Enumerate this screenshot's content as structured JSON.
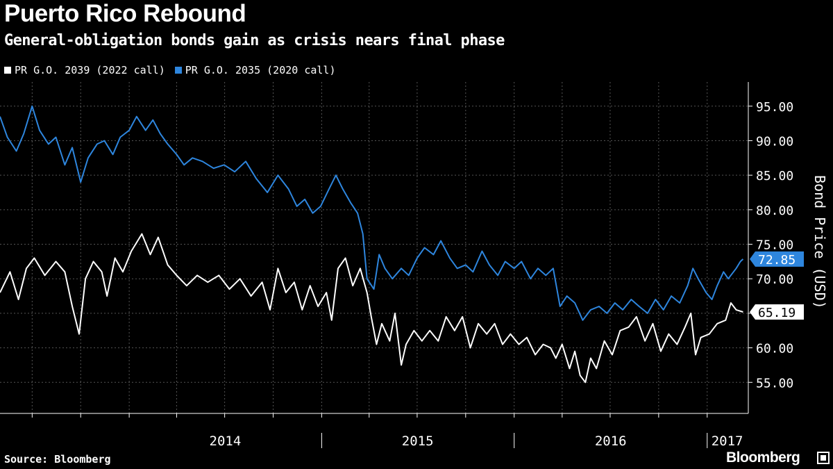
{
  "title": "Puerto Rico Rebound",
  "subtitle": "General-obligation bonds gain as crisis nears final phase",
  "source": "Source: Bloomberg",
  "brand": "Bloomberg",
  "colors": {
    "background": "#000000",
    "series_white": "#ffffff",
    "series_blue": "#2e86de",
    "grid": "#555555"
  },
  "chart_data": {
    "type": "line",
    "ylabel": "Bond Price (USD)",
    "ylim": [
      50.5,
      98.5
    ],
    "yticks": [
      "95.00",
      "90.00",
      "85.00",
      "80.00",
      "75.00",
      "70.00",
      "65.00",
      "60.00",
      "55.00"
    ],
    "ytick_values": [
      95,
      90,
      85,
      80,
      75,
      70,
      65,
      60,
      55
    ],
    "xrange": [
      "2013-05-01",
      "2017-03-20"
    ],
    "xticks": [
      {
        "label": "2014",
        "date": "2014-01-01"
      },
      {
        "label": "2015",
        "date": "2015-01-01"
      },
      {
        "label": "2016",
        "date": "2016-01-01"
      },
      {
        "label": "2017",
        "date": "2017-01-01"
      }
    ],
    "legend_position": "top-left",
    "series": [
      {
        "name": "PR G.O. 2039 (2022 call)",
        "color": "#ffffff",
        "last_label": "65.19",
        "points": [
          [
            "2013-05-01",
            68.0
          ],
          [
            "2013-05-20",
            71.0
          ],
          [
            "2013-06-05",
            67.0
          ],
          [
            "2013-06-20",
            71.5
          ],
          [
            "2013-07-05",
            73.0
          ],
          [
            "2013-07-25",
            70.5
          ],
          [
            "2013-08-15",
            72.5
          ],
          [
            "2013-09-01",
            71.0
          ],
          [
            "2013-09-15",
            66.0
          ],
          [
            "2013-09-28",
            62.0
          ],
          [
            "2013-10-10",
            70.0
          ],
          [
            "2013-10-25",
            72.5
          ],
          [
            "2013-11-10",
            71.0
          ],
          [
            "2013-11-20",
            67.5
          ],
          [
            "2013-12-05",
            73.0
          ],
          [
            "2013-12-20",
            71.0
          ],
          [
            "2014-01-05",
            74.0
          ],
          [
            "2014-01-25",
            76.5
          ],
          [
            "2014-02-10",
            73.5
          ],
          [
            "2014-02-25",
            76.0
          ],
          [
            "2014-03-15",
            72.0
          ],
          [
            "2014-04-01",
            70.5
          ],
          [
            "2014-04-20",
            69.0
          ],
          [
            "2014-05-10",
            70.5
          ],
          [
            "2014-05-30",
            69.5
          ],
          [
            "2014-06-20",
            70.5
          ],
          [
            "2014-07-10",
            68.5
          ],
          [
            "2014-07-30",
            70.0
          ],
          [
            "2014-08-20",
            67.5
          ],
          [
            "2014-09-10",
            69.5
          ],
          [
            "2014-09-25",
            65.5
          ],
          [
            "2014-10-10",
            71.5
          ],
          [
            "2014-10-25",
            68.0
          ],
          [
            "2014-11-10",
            69.5
          ],
          [
            "2014-11-25",
            65.5
          ],
          [
            "2014-12-10",
            69.0
          ],
          [
            "2014-12-25",
            66.0
          ],
          [
            "2015-01-10",
            68.0
          ],
          [
            "2015-01-20",
            64.0
          ],
          [
            "2015-02-01",
            71.5
          ],
          [
            "2015-02-15",
            73.0
          ],
          [
            "2015-03-01",
            69.0
          ],
          [
            "2015-03-15",
            71.5
          ],
          [
            "2015-03-28",
            68.0
          ],
          [
            "2015-04-05",
            64.5
          ],
          [
            "2015-04-15",
            60.5
          ],
          [
            "2015-04-25",
            63.5
          ],
          [
            "2015-05-10",
            61.0
          ],
          [
            "2015-05-20",
            65.0
          ],
          [
            "2015-06-01",
            57.5
          ],
          [
            "2015-06-10",
            60.5
          ],
          [
            "2015-06-25",
            62.5
          ],
          [
            "2015-07-10",
            61.0
          ],
          [
            "2015-07-25",
            62.5
          ],
          [
            "2015-08-10",
            61.0
          ],
          [
            "2015-08-25",
            64.5
          ],
          [
            "2015-09-10",
            62.5
          ],
          [
            "2015-09-25",
            64.5
          ],
          [
            "2015-10-10",
            60.0
          ],
          [
            "2015-10-25",
            63.5
          ],
          [
            "2015-11-10",
            62.0
          ],
          [
            "2015-11-25",
            63.5
          ],
          [
            "2015-12-10",
            60.5
          ],
          [
            "2015-12-25",
            62.0
          ],
          [
            "2016-01-10",
            60.5
          ],
          [
            "2016-01-25",
            61.5
          ],
          [
            "2016-02-10",
            59.0
          ],
          [
            "2016-02-25",
            60.5
          ],
          [
            "2016-03-10",
            60.0
          ],
          [
            "2016-03-20",
            58.5
          ],
          [
            "2016-04-01",
            60.5
          ],
          [
            "2016-04-15",
            57.0
          ],
          [
            "2016-04-25",
            59.5
          ],
          [
            "2016-05-05",
            56.0
          ],
          [
            "2016-05-15",
            55.0
          ],
          [
            "2016-05-25",
            58.5
          ],
          [
            "2016-06-05",
            57.0
          ],
          [
            "2016-06-20",
            61.0
          ],
          [
            "2016-07-05",
            59.0
          ],
          [
            "2016-07-20",
            62.5
          ],
          [
            "2016-08-05",
            63.0
          ],
          [
            "2016-08-20",
            64.5
          ],
          [
            "2016-09-05",
            61.0
          ],
          [
            "2016-09-20",
            63.5
          ],
          [
            "2016-10-05",
            59.5
          ],
          [
            "2016-10-20",
            62.0
          ],
          [
            "2016-11-05",
            60.5
          ],
          [
            "2016-11-20",
            63.0
          ],
          [
            "2016-12-01",
            65.0
          ],
          [
            "2016-12-10",
            59.0
          ],
          [
            "2016-12-20",
            61.5
          ],
          [
            "2017-01-05",
            62.0
          ],
          [
            "2017-01-20",
            63.5
          ],
          [
            "2017-02-05",
            64.0
          ],
          [
            "2017-02-15",
            66.5
          ],
          [
            "2017-02-25",
            65.5
          ],
          [
            "2017-03-10",
            65.19
          ]
        ]
      },
      {
        "name": "PR G.O. 2035 (2020 call)",
        "color": "#2e86de",
        "last_label": "72.85",
        "points": [
          [
            "2013-05-01",
            93.5
          ],
          [
            "2013-05-15",
            90.5
          ],
          [
            "2013-06-01",
            88.5
          ],
          [
            "2013-06-15",
            91.0
          ],
          [
            "2013-07-01",
            95.0
          ],
          [
            "2013-07-15",
            91.5
          ],
          [
            "2013-08-01",
            89.5
          ],
          [
            "2013-08-15",
            90.5
          ],
          [
            "2013-09-01",
            86.5
          ],
          [
            "2013-09-15",
            89.0
          ],
          [
            "2013-10-01",
            84.0
          ],
          [
            "2013-10-15",
            87.5
          ],
          [
            "2013-11-01",
            89.5
          ],
          [
            "2013-11-15",
            90.0
          ],
          [
            "2013-12-01",
            88.0
          ],
          [
            "2013-12-15",
            90.5
          ],
          [
            "2014-01-01",
            91.5
          ],
          [
            "2014-01-15",
            93.5
          ],
          [
            "2014-02-01",
            91.5
          ],
          [
            "2014-02-15",
            93.0
          ],
          [
            "2014-03-01",
            91.0
          ],
          [
            "2014-03-15",
            89.5
          ],
          [
            "2014-04-01",
            88.0
          ],
          [
            "2014-04-15",
            86.5
          ],
          [
            "2014-05-01",
            87.5
          ],
          [
            "2014-05-20",
            87.0
          ],
          [
            "2014-06-10",
            86.0
          ],
          [
            "2014-06-30",
            86.5
          ],
          [
            "2014-07-20",
            85.5
          ],
          [
            "2014-08-10",
            87.0
          ],
          [
            "2014-08-30",
            84.5
          ],
          [
            "2014-09-20",
            82.5
          ],
          [
            "2014-10-10",
            85.0
          ],
          [
            "2014-10-30",
            83.0
          ],
          [
            "2014-11-15",
            80.5
          ],
          [
            "2014-11-30",
            81.5
          ],
          [
            "2014-12-15",
            79.5
          ],
          [
            "2014-12-30",
            80.5
          ],
          [
            "2015-01-15",
            83.0
          ],
          [
            "2015-01-28",
            85.0
          ],
          [
            "2015-02-10",
            83.0
          ],
          [
            "2015-02-25",
            81.0
          ],
          [
            "2015-03-10",
            79.5
          ],
          [
            "2015-03-20",
            76.5
          ],
          [
            "2015-03-28",
            70.0
          ],
          [
            "2015-04-10",
            68.5
          ],
          [
            "2015-04-20",
            73.5
          ],
          [
            "2015-05-01",
            71.5
          ],
          [
            "2015-05-15",
            70.0
          ],
          [
            "2015-06-01",
            71.5
          ],
          [
            "2015-06-15",
            70.5
          ],
          [
            "2015-07-01",
            73.0
          ],
          [
            "2015-07-15",
            74.5
          ],
          [
            "2015-08-01",
            73.5
          ],
          [
            "2015-08-15",
            75.5
          ],
          [
            "2015-09-01",
            73.0
          ],
          [
            "2015-09-15",
            71.5
          ],
          [
            "2015-10-01",
            72.0
          ],
          [
            "2015-10-15",
            71.0
          ],
          [
            "2015-11-01",
            74.0
          ],
          [
            "2015-11-15",
            72.0
          ],
          [
            "2015-12-01",
            70.5
          ],
          [
            "2015-12-15",
            72.5
          ],
          [
            "2016-01-01",
            71.5
          ],
          [
            "2016-01-15",
            72.5
          ],
          [
            "2016-02-01",
            70.0
          ],
          [
            "2016-02-15",
            71.5
          ],
          [
            "2016-03-01",
            70.5
          ],
          [
            "2016-03-15",
            71.5
          ],
          [
            "2016-03-28",
            66.0
          ],
          [
            "2016-04-10",
            67.5
          ],
          [
            "2016-04-25",
            66.5
          ],
          [
            "2016-05-10",
            64.0
          ],
          [
            "2016-05-25",
            65.5
          ],
          [
            "2016-06-10",
            66.0
          ],
          [
            "2016-06-25",
            65.0
          ],
          [
            "2016-07-10",
            66.5
          ],
          [
            "2016-07-25",
            65.5
          ],
          [
            "2016-08-10",
            67.0
          ],
          [
            "2016-08-25",
            66.0
          ],
          [
            "2016-09-10",
            65.0
          ],
          [
            "2016-09-25",
            67.0
          ],
          [
            "2016-10-10",
            65.5
          ],
          [
            "2016-10-25",
            67.5
          ],
          [
            "2016-11-10",
            66.5
          ],
          [
            "2016-11-25",
            69.0
          ],
          [
            "2016-12-05",
            71.5
          ],
          [
            "2016-12-15",
            70.0
          ],
          [
            "2016-12-30",
            68.0
          ],
          [
            "2017-01-10",
            67.0
          ],
          [
            "2017-01-20",
            69.0
          ],
          [
            "2017-02-01",
            71.0
          ],
          [
            "2017-02-10",
            70.0
          ],
          [
            "2017-02-25",
            71.5
          ],
          [
            "2017-03-05",
            72.5
          ],
          [
            "2017-03-10",
            72.85
          ]
        ]
      }
    ]
  }
}
